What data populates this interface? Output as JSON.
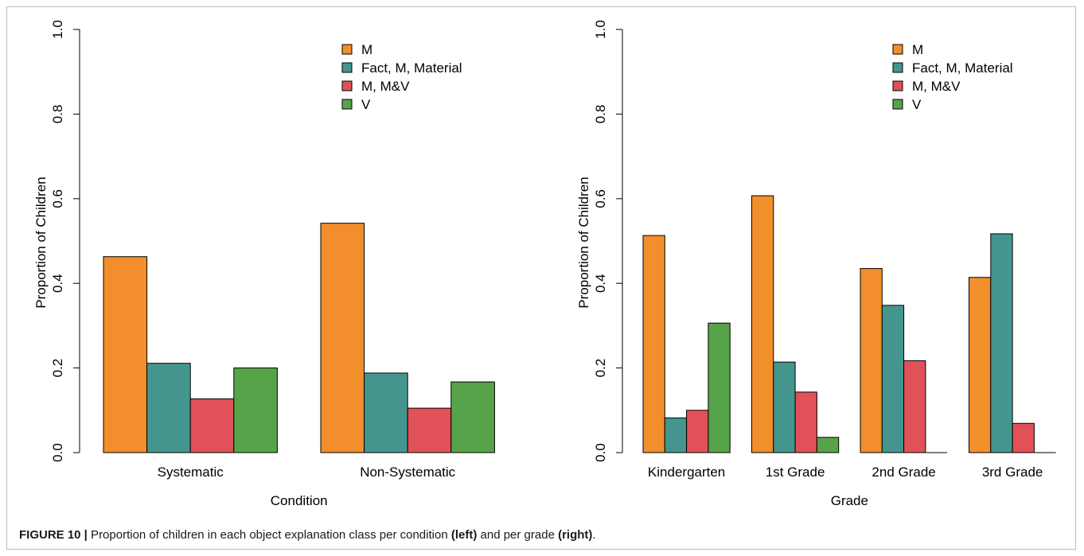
{
  "legend": {
    "entries": [
      "M",
      "Fact, M, Material",
      "M, M&V",
      "V"
    ],
    "colors": [
      "#F28E2B",
      "#45958F",
      "#E15159",
      "#57A349"
    ]
  },
  "chart_data": [
    {
      "type": "bar",
      "title": "",
      "xlabel": "Condition",
      "ylabel": "Proportion of Children",
      "ylim": [
        0,
        1
      ],
      "yticks": [
        "0.0",
        "0.2",
        "0.4",
        "0.6",
        "0.8",
        "1.0"
      ],
      "legend_position": "top-right",
      "categories": [
        "Systematic",
        "Non-Systematic"
      ],
      "series": [
        {
          "name": "M",
          "values": [
            0.463,
            0.542
          ]
        },
        {
          "name": "Fact, M, Material",
          "values": [
            0.211,
            0.188
          ]
        },
        {
          "name": "M, M&V",
          "values": [
            0.127,
            0.105
          ]
        },
        {
          "name": "V",
          "values": [
            0.2,
            0.167
          ]
        }
      ]
    },
    {
      "type": "bar",
      "title": "",
      "xlabel": "Grade",
      "ylabel": "Proportion of Children",
      "ylim": [
        0,
        1
      ],
      "yticks": [
        "0.0",
        "0.2",
        "0.4",
        "0.6",
        "0.8",
        "1.0"
      ],
      "legend_position": "top-right",
      "categories": [
        "Kindergarten",
        "1st Grade",
        "2nd Grade",
        "3rd Grade"
      ],
      "series": [
        {
          "name": "M",
          "values": [
            0.513,
            0.607,
            0.435,
            0.414
          ]
        },
        {
          "name": "Fact, M, Material",
          "values": [
            0.082,
            0.214,
            0.348,
            0.517
          ]
        },
        {
          "name": "M, M&V",
          "values": [
            0.1,
            0.143,
            0.217,
            0.069
          ]
        },
        {
          "name": "V",
          "values": [
            0.306,
            0.036,
            0.0,
            0.0
          ]
        }
      ]
    }
  ],
  "caption": {
    "label": "FIGURE 10 |",
    "text1": " Proportion of children in each object explanation class per condition ",
    "bold1": "(left)",
    "text2": " and per grade ",
    "bold2": "(right)",
    "text3": "."
  }
}
